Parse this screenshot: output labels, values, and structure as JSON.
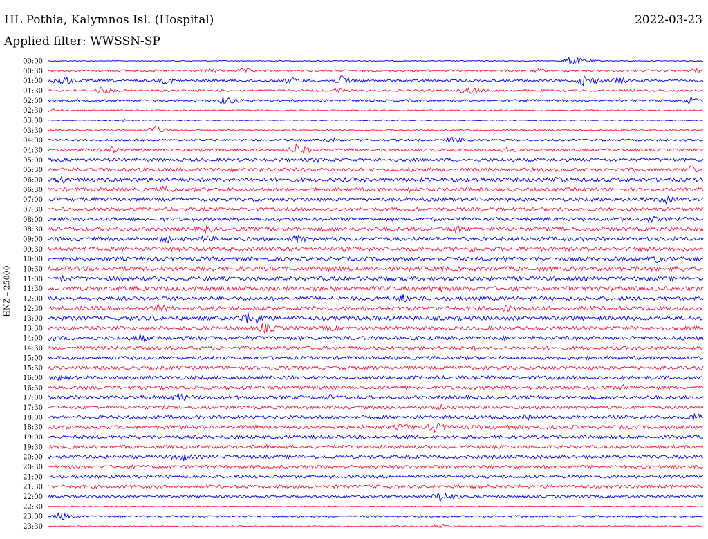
{
  "header": {
    "station": "HL Pothia, Kalymnos Isl. (Hospital)",
    "date": "2022-03-23",
    "filter": "Applied filter: WWSSN-SP",
    "channel_label": "HNZ – 25000"
  },
  "colors": {
    "even": "#1010e0",
    "odd": "#f0204a"
  },
  "chart_data": {
    "type": "line",
    "title": "HL Pothia, Kalymnos Isl. (Hospital)",
    "ylabel": "HNZ – 25000",
    "series_kind": "helicorder",
    "rows": [
      {
        "label": "00:00",
        "amp": 0.6,
        "events": [
          {
            "t": 0.34,
            "a": 1.4
          },
          {
            "t": 0.8,
            "a": 7
          }
        ]
      },
      {
        "label": "00:30",
        "amp": 1.4,
        "events": [
          {
            "t": 0.25,
            "a": 3
          },
          {
            "t": 0.3,
            "a": 4
          },
          {
            "t": 0.75,
            "a": 3
          },
          {
            "t": 0.99,
            "a": 3
          }
        ]
      },
      {
        "label": "01:00",
        "amp": 1.6,
        "events": [
          {
            "t": 0.02,
            "a": 8
          },
          {
            "t": 0.18,
            "a": 5
          },
          {
            "t": 0.37,
            "a": 6
          },
          {
            "t": 0.45,
            "a": 8
          },
          {
            "t": 0.82,
            "a": 9
          },
          {
            "t": 0.87,
            "a": 6
          }
        ]
      },
      {
        "label": "01:30",
        "amp": 1.4,
        "events": [
          {
            "t": 0.08,
            "a": 6
          },
          {
            "t": 0.44,
            "a": 4
          },
          {
            "t": 0.64,
            "a": 6
          }
        ]
      },
      {
        "label": "02:00",
        "amp": 1.5,
        "events": [
          {
            "t": 0.27,
            "a": 7
          },
          {
            "t": 0.98,
            "a": 6
          }
        ]
      },
      {
        "label": "02:30",
        "amp": 0.9,
        "events": [
          {
            "t": 0.0,
            "a": 3
          }
        ]
      },
      {
        "label": "03:00",
        "amp": 0.6,
        "events": [
          {
            "t": 0.11,
            "a": 2
          }
        ]
      },
      {
        "label": "03:30",
        "amp": 1.0,
        "events": [
          {
            "t": 0.16,
            "a": 6
          }
        ]
      },
      {
        "label": "04:00",
        "amp": 1.5,
        "events": [
          {
            "t": 0.43,
            "a": 4
          },
          {
            "t": 0.62,
            "a": 6
          }
        ]
      },
      {
        "label": "04:30",
        "amp": 2.0,
        "events": [
          {
            "t": 0.09,
            "a": 7
          },
          {
            "t": 0.38,
            "a": 9
          },
          {
            "t": 0.7,
            "a": 4
          }
        ]
      },
      {
        "label": "05:00",
        "amp": 2.3,
        "events": [
          {
            "t": 0.41,
            "a": 4
          }
        ]
      },
      {
        "label": "05:30",
        "amp": 2.6,
        "events": [
          {
            "t": 0.98,
            "a": 6
          }
        ]
      },
      {
        "label": "06:00",
        "amp": 3.0,
        "events": [
          {
            "t": 0.02,
            "a": 7
          },
          {
            "t": 0.78,
            "a": 6
          }
        ]
      },
      {
        "label": "06:30",
        "amp": 2.6,
        "events": [
          {
            "t": 0.18,
            "a": 6
          },
          {
            "t": 0.55,
            "a": 5
          }
        ]
      },
      {
        "label": "07:00",
        "amp": 2.6,
        "events": [
          {
            "t": 0.94,
            "a": 7
          }
        ]
      },
      {
        "label": "07:30",
        "amp": 2.4,
        "events": [
          {
            "t": 0.02,
            "a": 4
          },
          {
            "t": 0.56,
            "a": 4
          }
        ]
      },
      {
        "label": "08:00",
        "amp": 2.6,
        "events": [
          {
            "t": 0.92,
            "a": 5
          }
        ]
      },
      {
        "label": "08:30",
        "amp": 2.8,
        "events": [
          {
            "t": 0.24,
            "a": 6
          },
          {
            "t": 0.62,
            "a": 7
          }
        ]
      },
      {
        "label": "09:00",
        "amp": 2.8,
        "events": [
          {
            "t": 0.18,
            "a": 6
          },
          {
            "t": 0.24,
            "a": 6
          },
          {
            "t": 0.38,
            "a": 7
          }
        ]
      },
      {
        "label": "09:30",
        "amp": 2.8,
        "events": [
          {
            "t": 0.65,
            "a": 5
          }
        ]
      },
      {
        "label": "10:00",
        "amp": 2.6,
        "events": [
          {
            "t": 0.7,
            "a": 5
          },
          {
            "t": 0.93,
            "a": 6
          }
        ]
      },
      {
        "label": "10:30",
        "amp": 3.0,
        "events": [
          {
            "t": 0.6,
            "a": 5
          },
          {
            "t": 0.97,
            "a": 5
          }
        ]
      },
      {
        "label": "11:00",
        "amp": 2.8,
        "events": [
          {
            "t": 0.02,
            "a": 5
          }
        ]
      },
      {
        "label": "11:30",
        "amp": 3.0,
        "events": [
          {
            "t": 0.59,
            "a": 7
          }
        ]
      },
      {
        "label": "12:00",
        "amp": 2.6,
        "events": [
          {
            "t": 0.54,
            "a": 7
          }
        ]
      },
      {
        "label": "12:30",
        "amp": 2.8,
        "events": [
          {
            "t": 0.17,
            "a": 6
          },
          {
            "t": 0.7,
            "a": 6
          }
        ]
      },
      {
        "label": "13:00",
        "amp": 2.8,
        "events": [
          {
            "t": 0.16,
            "a": 5
          },
          {
            "t": 0.3,
            "a": 8
          },
          {
            "t": 0.31,
            "a": 12
          }
        ]
      },
      {
        "label": "13:30",
        "amp": 2.6,
        "events": [
          {
            "t": 0.33,
            "a": 8
          },
          {
            "t": 0.43,
            "a": 5
          }
        ]
      },
      {
        "label": "14:00",
        "amp": 2.8,
        "events": [
          {
            "t": 0.0,
            "a": 6
          },
          {
            "t": 0.14,
            "a": 7
          }
        ]
      },
      {
        "label": "14:30",
        "amp": 2.4,
        "events": [
          {
            "t": 0.65,
            "a": 4
          }
        ]
      },
      {
        "label": "15:00",
        "amp": 2.4,
        "events": [
          {
            "t": 0.8,
            "a": 4
          }
        ]
      },
      {
        "label": "15:30",
        "amp": 2.6,
        "events": [
          {
            "t": 0.34,
            "a": 5
          }
        ]
      },
      {
        "label": "16:00",
        "amp": 2.6,
        "events": [
          {
            "t": 0.02,
            "a": 5
          }
        ]
      },
      {
        "label": "16:30",
        "amp": 2.6,
        "events": [
          {
            "t": 0.88,
            "a": 5
          }
        ]
      },
      {
        "label": "17:00",
        "amp": 2.6,
        "events": [
          {
            "t": 0.2,
            "a": 8
          },
          {
            "t": 0.43,
            "a": 5
          }
        ]
      },
      {
        "label": "17:30",
        "amp": 2.4,
        "events": [
          {
            "t": 0.6,
            "a": 4
          }
        ]
      },
      {
        "label": "18:00",
        "amp": 2.4,
        "events": [
          {
            "t": 0.73,
            "a": 5
          },
          {
            "t": 0.99,
            "a": 9
          }
        ]
      },
      {
        "label": "18:30",
        "amp": 2.6,
        "events": [
          {
            "t": 0.54,
            "a": 6
          },
          {
            "t": 0.59,
            "a": 8
          }
        ]
      },
      {
        "label": "19:00",
        "amp": 2.4,
        "events": [
          {
            "t": 0.55,
            "a": 4
          }
        ]
      },
      {
        "label": "19:30",
        "amp": 2.4,
        "events": [
          {
            "t": 0.33,
            "a": 4
          }
        ]
      },
      {
        "label": "20:00",
        "amp": 2.4,
        "events": [
          {
            "t": 0.2,
            "a": 8
          }
        ]
      },
      {
        "label": "20:30",
        "amp": 2.2,
        "events": []
      },
      {
        "label": "21:00",
        "amp": 2.2,
        "events": []
      },
      {
        "label": "21:30",
        "amp": 2.2,
        "events": []
      },
      {
        "label": "22:00",
        "amp": 1.6,
        "events": [
          {
            "t": 0.6,
            "a": 9
          }
        ]
      },
      {
        "label": "22:30",
        "amp": 0.6,
        "events": []
      },
      {
        "label": "23:00",
        "amp": 1.2,
        "events": [
          {
            "t": 0.02,
            "a": 6
          }
        ]
      },
      {
        "label": "23:30",
        "amp": 0.8,
        "events": [
          {
            "t": 0.6,
            "a": 3
          }
        ]
      }
    ]
  }
}
